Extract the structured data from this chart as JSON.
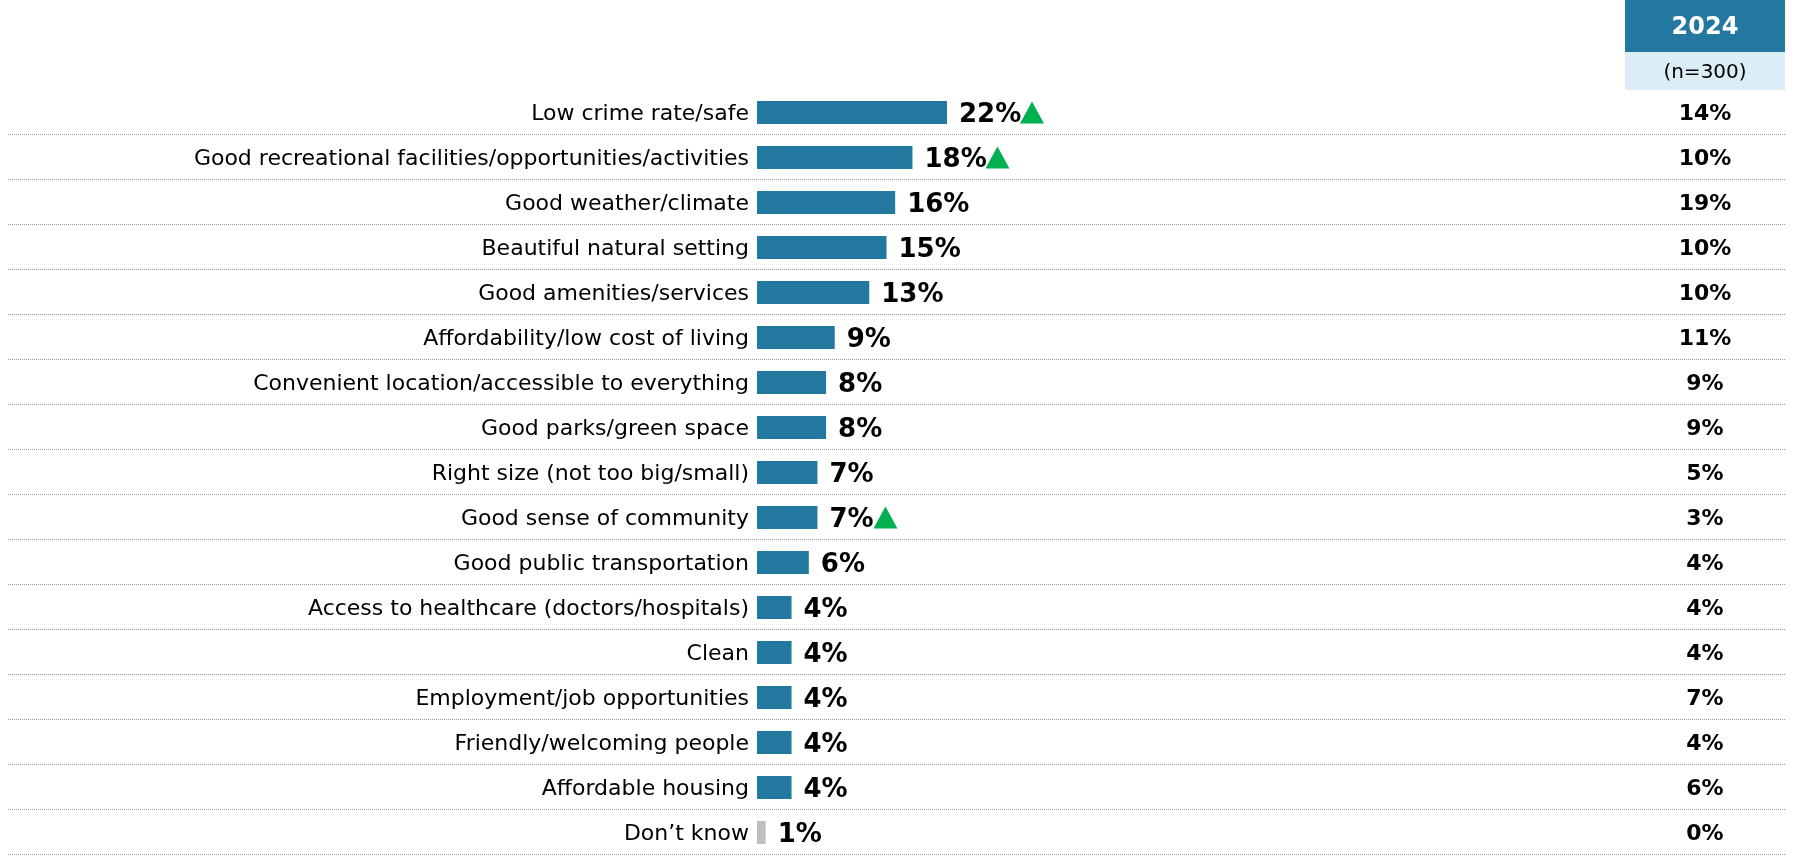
{
  "chart_data": {
    "type": "bar",
    "orientation": "horizontal",
    "categories": [
      "Low crime rate/safe",
      "Good recreational facilities/opportunities/activities",
      "Good weather/climate",
      "Beautiful natural setting",
      "Good amenities/services",
      "Affordability/low cost of living",
      "Convenient location/accessible to everything",
      "Good parks/green space",
      "Right size (not too big/small)",
      "Good sense of community",
      "Good public transportation",
      "Access to healthcare (doctors/hospitals)",
      "Clean",
      "Employment/job opportunities",
      "Friendly/welcoming people",
      "Affordable housing",
      "Don’t know"
    ],
    "series": [
      {
        "values": [
          22,
          18,
          16,
          15,
          13,
          9,
          8,
          8,
          7,
          7,
          6,
          4,
          4,
          4,
          4,
          4,
          1
        ],
        "value_labels": [
          "22%",
          "18%",
          "16%",
          "15%",
          "13%",
          "9%",
          "8%",
          "8%",
          "7%",
          "7%",
          "6%",
          "4%",
          "4%",
          "4%",
          "4%",
          "4%",
          "1%"
        ],
        "colors": [
          "#22789f",
          "#22789f",
          "#22789f",
          "#22789f",
          "#22789f",
          "#22789f",
          "#22789f",
          "#22789f",
          "#22789f",
          "#22789f",
          "#22789f",
          "#22789f",
          "#22789f",
          "#22789f",
          "#22789f",
          "#22789f",
          "#bfbfbf"
        ]
      }
    ],
    "annotations": [
      "2024",
      "(n=300)",
      "14%",
      "10%",
      "19%",
      "10%",
      "10%",
      "11%",
      "9%",
      "9%",
      "5%",
      "3%",
      "4%",
      "4%",
      "4%",
      "7%",
      "4%",
      "6%",
      "0%"
    ]
  }
}
